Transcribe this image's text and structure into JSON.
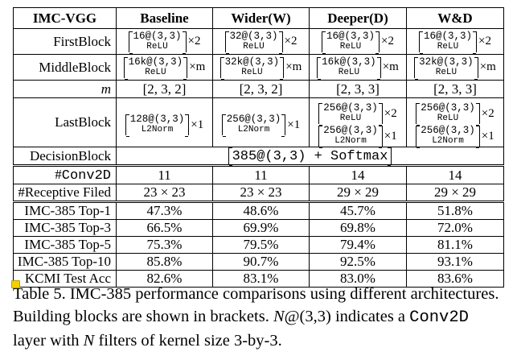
{
  "table": {
    "headers": [
      "IMC-VGG",
      "Baseline",
      "Wider(W)",
      "Deeper(D)",
      "W&D"
    ],
    "first_block": {
      "label": "FirstBlock",
      "cells": [
        {
          "top": "16@(3,3)",
          "bot": "ReLU",
          "mult": "×2"
        },
        {
          "top": "32@(3,3)",
          "bot": "ReLU",
          "mult": "×2"
        },
        {
          "top": "16@(3,3)",
          "bot": "ReLU",
          "mult": "×2"
        },
        {
          "top": "16@(3,3)",
          "bot": "ReLU",
          "mult": "×2"
        }
      ]
    },
    "middle_block": {
      "label": "MiddleBlock",
      "cells": [
        {
          "top": "16k@(3,3)",
          "bot": "ReLU",
          "mult": "×m"
        },
        {
          "top": "32k@(3,3)",
          "bot": "ReLU",
          "mult": "×m"
        },
        {
          "top": "16k@(3,3)",
          "bot": "ReLU",
          "mult": "×m"
        },
        {
          "top": "32k@(3,3)",
          "bot": "ReLU",
          "mult": "×m"
        }
      ]
    },
    "m_row": {
      "label": "m",
      "values": [
        "[2, 3, 2]",
        "[2, 3, 2]",
        "[2, 3, 3]",
        "[2, 3, 3]"
      ]
    },
    "last_block": {
      "label": "LastBlock",
      "cells": [
        [
          {
            "top": "128@(3,3)",
            "bot": "L2Norm",
            "mult": "×1"
          }
        ],
        [
          {
            "top": "256@(3,3)",
            "bot": "L2Norm",
            "mult": "×1"
          }
        ],
        [
          {
            "top": "256@(3,3)",
            "bot": "ReLU",
            "mult": "×2"
          },
          {
            "top": "256@(3,3)",
            "bot": "L2Norm",
            "mult": "×1"
          }
        ],
        [
          {
            "top": "256@(3,3)",
            "bot": "ReLU",
            "mult": "×2"
          },
          {
            "top": "256@(3,3)",
            "bot": "L2Norm",
            "mult": "×1"
          }
        ]
      ]
    },
    "decision_block": {
      "label": "DecisionBlock",
      "pre": "385@(3,3) + ",
      "post": "Softmax"
    },
    "conv_row": {
      "label": "#Conv2D",
      "values": [
        "11",
        "11",
        "14",
        "14"
      ]
    },
    "rf_row": {
      "label": "#Receptive Filed",
      "values": [
        "23 × 23",
        "23 × 23",
        "29 × 29",
        "29 × 29"
      ]
    },
    "results": [
      {
        "label": "IMC-385 Top-1",
        "values": [
          "47.3%",
          "48.6%",
          "45.7%",
          "51.8%"
        ]
      },
      {
        "label": "IMC-385 Top-3",
        "values": [
          "66.5%",
          "69.9%",
          "69.8%",
          "72.0%"
        ]
      },
      {
        "label": "IMC-385 Top-5",
        "values": [
          "75.3%",
          "79.5%",
          "79.4%",
          "81.1%"
        ]
      },
      {
        "label": "IMC-385 Top-10",
        "values": [
          "85.8%",
          "90.7%",
          "92.5%",
          "93.1%"
        ]
      },
      {
        "label": "KCMI Test Acc",
        "values": [
          "82.6%",
          "83.1%",
          "83.0%",
          "83.6%"
        ]
      }
    ]
  },
  "caption": {
    "p1": "Table 5. IMC-385 performance comparisons using different architectures. Building blocks are shown in brackets. ",
    "n1": "N",
    "p2": "@(3,3) indicates a ",
    "mono": "Conv2D",
    "p3": " layer with ",
    "n2": "N",
    "p4": " filters of kernel size 3-by-3."
  }
}
